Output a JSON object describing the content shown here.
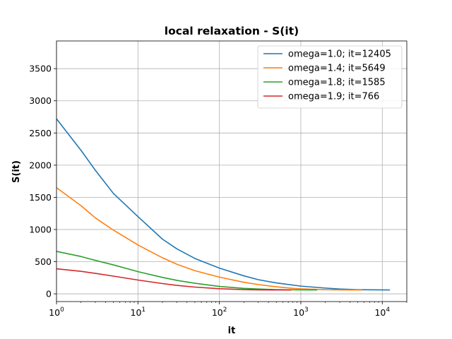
{
  "chart_data": {
    "type": "line",
    "title": "local relaxation - S(it)",
    "xlabel": "it",
    "ylabel": "S(it)",
    "xscale": "log",
    "xlim": [
      1,
      20000
    ],
    "ylim": [
      -120,
      3930
    ],
    "grid": true,
    "legend_position": "top-right",
    "x_ticks": [
      {
        "value": 1,
        "base": "10",
        "exp": "0"
      },
      {
        "value": 10,
        "base": "10",
        "exp": "1"
      },
      {
        "value": 100,
        "base": "10",
        "exp": "2"
      },
      {
        "value": 1000,
        "base": "10",
        "exp": "3"
      },
      {
        "value": 10000,
        "base": "10",
        "exp": "4"
      }
    ],
    "y_ticks": [
      {
        "value": 0,
        "label": "0"
      },
      {
        "value": 500,
        "label": "500"
      },
      {
        "value": 1000,
        "label": "1000"
      },
      {
        "value": 1500,
        "label": "1500"
      },
      {
        "value": 2000,
        "label": "2000"
      },
      {
        "value": 2500,
        "label": "2500"
      },
      {
        "value": 3000,
        "label": "3000"
      },
      {
        "value": 3500,
        "label": "3500"
      }
    ],
    "series": [
      {
        "name": "omega=1.0; it=12405",
        "color": "#1f77b4",
        "x": [
          1,
          2,
          3,
          5,
          10,
          20,
          30,
          50,
          100,
          200,
          300,
          500,
          1000,
          2000,
          3000,
          5000,
          12405
        ],
        "y": [
          2720,
          2230,
          1920,
          1560,
          1200,
          850,
          700,
          550,
          400,
          280,
          220,
          170,
          120,
          90,
          75,
          65,
          60
        ]
      },
      {
        "name": "omega=1.4; it=5649",
        "color": "#ff7f0e",
        "x": [
          1,
          2,
          3,
          5,
          10,
          20,
          30,
          50,
          100,
          200,
          300,
          500,
          800,
          1000,
          2000,
          3000,
          5649
        ],
        "y": [
          1650,
          1370,
          1180,
          990,
          760,
          560,
          460,
          360,
          260,
          180,
          145,
          110,
          85,
          78,
          65,
          62,
          60
        ]
      },
      {
        "name": "omega=1.8; it=1585",
        "color": "#2ca02c",
        "x": [
          1,
          2,
          3,
          5,
          10,
          20,
          30,
          50,
          100,
          200,
          300,
          500,
          1000,
          1585
        ],
        "y": [
          660,
          580,
          520,
          450,
          345,
          255,
          210,
          165,
          115,
          85,
          75,
          66,
          61,
          60
        ]
      },
      {
        "name": "omega=1.9; it=766",
        "color": "#d62728",
        "x": [
          1,
          2,
          3,
          5,
          10,
          20,
          30,
          50,
          100,
          200,
          300,
          500,
          766
        ],
        "y": [
          390,
          350,
          318,
          275,
          215,
          160,
          132,
          105,
          80,
          66,
          62,
          60,
          60
        ]
      }
    ]
  }
}
